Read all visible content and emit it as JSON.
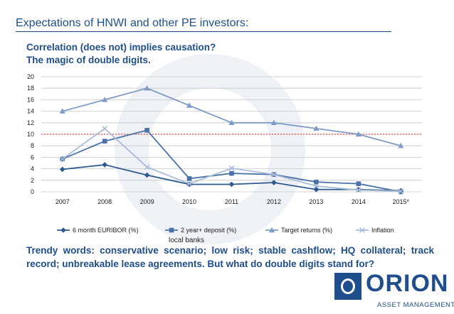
{
  "slide": {
    "title": "Expectations of HNWI and other PE investors:",
    "subtitle_line1": "Correlation (does not) implies causation?",
    "subtitle_line2": "The magic of double digits.",
    "under_legend": "local banks",
    "body": "Trendy words: conservative scenario; low risk; stable cashflow; HQ collateral; track record; unbreakable lease agreements. But what do double digits stand for?"
  },
  "logo": {
    "word": "ORION",
    "tagline": "ASSET MANAGEMENT",
    "brand_color": "#1f4e8c"
  },
  "chart_data": {
    "type": "line",
    "title": "",
    "xlabel": "",
    "ylabel": "",
    "categories": [
      "2007",
      "2008",
      "2009",
      "2010",
      "2011",
      "2012",
      "2013",
      "2014",
      "2015*"
    ],
    "ylim": [
      0,
      20
    ],
    "yticks": [
      0,
      2,
      4,
      6,
      8,
      10,
      12,
      14,
      16,
      18,
      20
    ],
    "grid": true,
    "legend_position": "bottom",
    "reference_line": {
      "value": 10,
      "color": "#e05050",
      "style": "dotted"
    },
    "series": [
      {
        "name": "6 month EURIBOR (%)",
        "marker": "diamond",
        "color": "#2e5890",
        "values": [
          3.9,
          4.7,
          2.9,
          1.3,
          1.3,
          1.6,
          0.4,
          0.4,
          0.2
        ]
      },
      {
        "name": "2 year+ deposit (%)",
        "marker": "square",
        "color": "#4a72a8",
        "values": [
          5.7,
          8.8,
          10.7,
          2.3,
          3.2,
          3.0,
          1.7,
          1.4,
          0.0
        ]
      },
      {
        "name": "Target returns (%)",
        "marker": "triangle",
        "color": "#7f9cc6",
        "values": [
          14,
          16,
          18,
          15,
          12,
          12,
          11,
          10,
          8
        ]
      },
      {
        "name": "Inflation",
        "marker": "x",
        "color": "#a9bcd9",
        "values": [
          5.7,
          11.0,
          4.3,
          1.4,
          4.1,
          3.0,
          1.0,
          0.3,
          0.1
        ]
      }
    ]
  }
}
